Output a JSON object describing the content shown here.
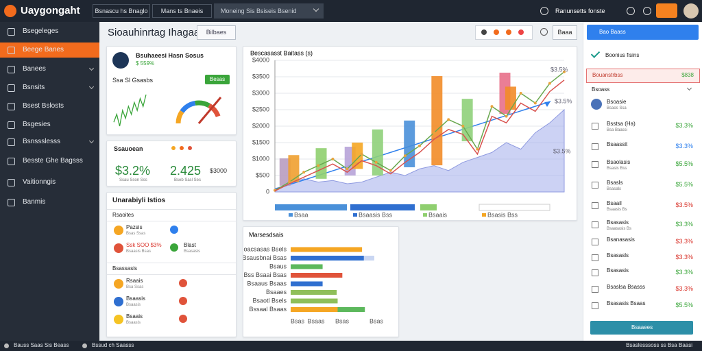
{
  "topbar": {
    "brand": "Uaygongaht",
    "tabs": [
      "Bsnascu hs Bnaglo",
      "Mans ts Bnaeis"
    ],
    "search": "Moneing Sis Bsiseis Bsenid",
    "account": "Ranunsetts fonste"
  },
  "sidebar": [
    "Bsegeleges",
    "Beege Banes",
    "Banees",
    "Bsnsits",
    "Bsest Bslosts",
    "Bsgesies",
    "Bsnssslesss",
    "Besste Ghe Bagsss",
    "Vaitionngis",
    "Banmis"
  ],
  "header": {
    "title": "Sioauhinrtag Ihagaani",
    "filter": "Bilbaes",
    "action": "Baaa"
  },
  "summary": {
    "name": "Bsuhaeesi Hasn Sosus",
    "badge": "$ 559%",
    "label": "Ssa Sl Gsasbs",
    "button": "Besas",
    "spark": [
      3,
      5,
      2,
      6,
      4,
      7,
      5,
      8,
      6,
      9,
      7,
      10
    ]
  },
  "stats": {
    "title": "Ssauoean",
    "items": [
      {
        "value": "$3.2%",
        "caption": "Ssau Sson Sss"
      },
      {
        "value": "2.425",
        "caption": "Bseb Sasl Ses"
      },
      {
        "value": "$3000",
        "caption": ""
      }
    ]
  },
  "list": {
    "title": "Unarabiyli Istios",
    "sections": [
      {
        "title": "Rsaoites",
        "rows": [
          {
            "name": "Pazsis",
            "sub": "Bsas Ssas",
            "name2": "",
            "sub2": ""
          },
          {
            "name": "Ssk SOO $3%",
            "sub": "Bsaasis Bsas",
            "name2": "Blast",
            "sub2": "Bsasasis"
          }
        ]
      },
      {
        "title": "Bsassasis",
        "rows": [
          {
            "name": "Rsaais",
            "sub": "Bsa Ssas"
          },
          {
            "name": "Bsaasis",
            "sub": "Bsaasis"
          },
          {
            "name": "Bsaais",
            "sub": "Bsaasis"
          }
        ]
      }
    ]
  },
  "main_chart": {
    "title": "Bescasasst Baitass (s)",
    "ylim": [
      0,
      4000
    ],
    "yticks": [
      0,
      {
        "value": 500,
        "label": "$500"
      },
      {
        "value": 1000,
        "label": "$1000"
      },
      {
        "value": 1500,
        "label": "$1500"
      },
      {
        "value": 2000,
        "label": "$2000"
      },
      {
        "value": 2500,
        "label": "$2500"
      },
      {
        "value": 3000,
        "label": "$3000"
      },
      {
        "value": 3500,
        "label": "$3500"
      },
      {
        "value": 4000,
        "label": "$4000"
      }
    ],
    "grid": true,
    "xlim": [
      0,
      20
    ],
    "x": [
      0,
      1,
      2,
      3,
      4,
      5,
      6,
      7,
      8,
      9,
      10,
      11,
      12,
      13,
      14,
      15,
      16,
      17,
      18,
      19,
      20
    ],
    "area": {
      "color": "#aab4ec",
      "values": [
        100,
        250,
        400,
        300,
        350,
        250,
        300,
        450,
        600,
        500,
        700,
        800,
        650,
        900,
        1050,
        1200,
        1500,
        1300,
        1800,
        2100,
        2500
      ]
    },
    "lines": [
      {
        "color": "#6aa84f",
        "values": [
          50,
          300,
          600,
          800,
          1000,
          700,
          1150,
          900,
          650,
          1100,
          1400,
          1800,
          2200,
          2000,
          1300,
          2600,
          2300,
          3000,
          2700,
          3300,
          3650
        ]
      },
      {
        "color": "#d9534f",
        "values": [
          30,
          250,
          450,
          650,
          850,
          600,
          950,
          800,
          550,
          900,
          1200,
          1600,
          1900,
          1750,
          1150,
          2300,
          2100,
          2700,
          2450,
          3050,
          3400
        ]
      }
    ],
    "bars": [
      {
        "x": 0.7,
        "low": 190,
        "high": 1020,
        "color": "#b89cc0"
      },
      {
        "x": 1.3,
        "low": 300,
        "high": 1120,
        "color": "#f0a030"
      },
      {
        "x": 3.2,
        "low": 400,
        "high": 1330,
        "color": "#8fcf6f"
      },
      {
        "x": 5.2,
        "low": 500,
        "high": 1375,
        "color": "#b7a3d8"
      },
      {
        "x": 5.7,
        "low": 700,
        "high": 1500,
        "color": "#f5a623"
      },
      {
        "x": 7.1,
        "low": 500,
        "high": 1900,
        "color": "#8fd07a"
      },
      {
        "x": 9.3,
        "low": 750,
        "high": 2170,
        "color": "#4a90d9"
      },
      {
        "x": 11.2,
        "low": 810,
        "high": 3520,
        "color": "#f28c28"
      },
      {
        "x": 13.3,
        "low": 1540,
        "high": 2830,
        "color": "#8fd07a"
      },
      {
        "x": 15.9,
        "low": 2375,
        "high": 3625,
        "color": "#e8708a"
      },
      {
        "x": 16.3,
        "low": 2500,
        "high": 3200,
        "color": "#f28c28"
      }
    ],
    "annotations": [
      "$3.5%",
      "$3.5%",
      "$3.5%"
    ],
    "legend": [
      "Bsaa",
      "Bsaasis Bss",
      "Bsaais",
      "Bsasis Bss"
    ]
  },
  "bar_card": {
    "title": "Marsesdsais",
    "xlim": [
      0,
      100
    ],
    "axis_labels": [
      "Bsas",
      "Bsaas",
      "Bsas",
      "Bsas"
    ],
    "rows": [
      {
        "label": "Poacsasas Bsels",
        "segments": [
          {
            "value": 76,
            "color": "#f5a623"
          }
        ]
      },
      {
        "label": "Bsausbnai Bsas",
        "segments": [
          {
            "value": 78,
            "color": "#2f6fd0"
          },
          {
            "value": 11,
            "color": "#c9d6f2"
          }
        ]
      },
      {
        "label": "Bsaus",
        "segments": [
          {
            "value": 34,
            "color": "#5cb85c"
          }
        ]
      },
      {
        "label": "Bss Bsaai Bsas",
        "segments": [
          {
            "value": 55,
            "color": "#e0533a"
          }
        ]
      },
      {
        "label": "Bsaaus Bsaas",
        "segments": [
          {
            "value": 34,
            "color": "#2f6fd0"
          }
        ]
      },
      {
        "label": "Bsaaes",
        "segments": [
          {
            "value": 49,
            "color": "#8fbf5a"
          }
        ]
      },
      {
        "label": "Bsaotl Bsels",
        "segments": [
          {
            "value": 50,
            "color": "#8fbf5a"
          }
        ]
      },
      {
        "label": "Bssaal Bsaas",
        "segments": [
          {
            "value": 50,
            "color": "#f5a623"
          },
          {
            "value": 29,
            "color": "#5cb85c"
          }
        ]
      }
    ]
  },
  "side": {
    "button": "Bao Baass",
    "status": "Boonius fisins",
    "alert": {
      "name": "Bouanstrbss",
      "value": "$838"
    },
    "section": "Bsoass",
    "items": [
      {
        "name": "Bsoasie",
        "sub": "Bsaos Ssa",
        "value": "",
        "color": "#333333"
      },
      {
        "name": "Bsstsa (Ha)",
        "sub": "Bsa Baassi",
        "value": "$3.3%",
        "color": "#3aa53a"
      },
      {
        "name": "Bsaassit",
        "sub": "",
        "value": "$3.3%",
        "color": "#2f80ed"
      },
      {
        "name": "Bsaolasis",
        "sub": "Bsasis Bss",
        "value": "$5.5%",
        "color": "#3aa53a"
      },
      {
        "name": "Bsasls",
        "sub": "Bsasals",
        "value": "$5.5%",
        "color": "#3aa53a"
      },
      {
        "name": "Bsaail",
        "sub": "Bsaasis Bs",
        "value": "$3.5%",
        "color": "#d9342b"
      },
      {
        "name": "Bsasasis",
        "sub": "Bsaasasis Bs",
        "value": "$3.3%",
        "color": "#3aa53a"
      },
      {
        "name": "Bsanasasis",
        "sub": "",
        "value": "$3.3%",
        "color": "#d9342b"
      },
      {
        "name": "Bsasasls",
        "sub": "",
        "value": "$3.3%",
        "color": "#d9342b"
      },
      {
        "name": "Bsasasis",
        "sub": "",
        "value": "$3.3%",
        "color": "#3aa53a"
      },
      {
        "name": "Bsaslsa Bsasss",
        "sub": "",
        "value": "$3.3%",
        "color": "#d9342b"
      },
      {
        "name": "Bsasasis Bsaas",
        "sub": "",
        "value": "$5.5%",
        "color": "#3aa53a"
      }
    ],
    "footer": "Bsaaees"
  },
  "footer": {
    "left": [
      "Bauss Saas Sis Beass",
      "Bssud ch Saasss"
    ],
    "right": "Bsaslesssoss ss Bsa Baasi"
  }
}
